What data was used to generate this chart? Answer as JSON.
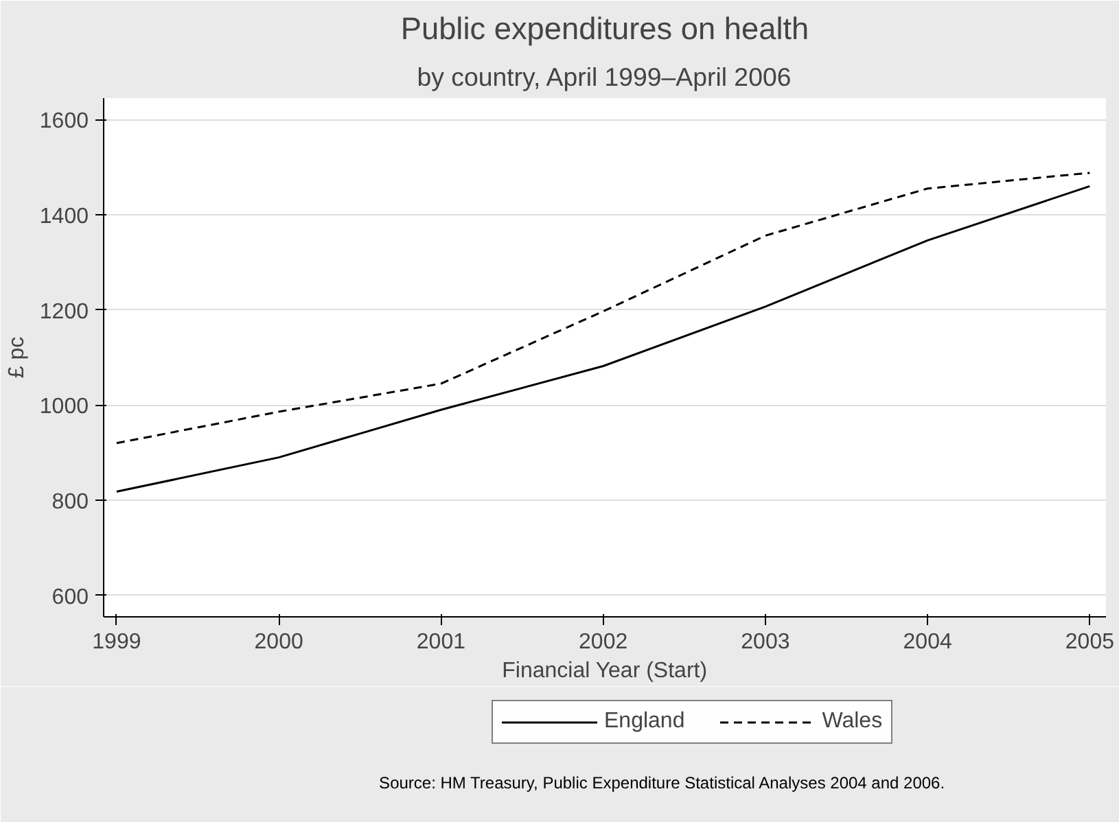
{
  "chart_data": {
    "type": "line",
    "title": "Public expenditures on health",
    "subtitle": "by country, April 1999–April 2006",
    "xlabel": "Financial Year (Start)",
    "ylabel": "£ pc",
    "x": [
      1999,
      2000,
      2001,
      2002,
      2003,
      2004,
      2005
    ],
    "series": [
      {
        "name": "England",
        "color": "#000000",
        "line_style": "solid",
        "values": [
          818,
          890,
          990,
          1082,
          1207,
          1346,
          1460
        ]
      },
      {
        "name": "Wales",
        "color": "#000000",
        "line_style": "dashed",
        "values": [
          920,
          986,
          1045,
          1197,
          1356,
          1455,
          1488
        ]
      }
    ],
    "xlim": [
      1998.92,
      2005.1
    ],
    "ylim": [
      555,
      1645
    ],
    "xticks": [
      1999,
      2000,
      2001,
      2002,
      2003,
      2004,
      2005
    ],
    "yticks": [
      600,
      800,
      1000,
      1200,
      1400,
      1600
    ],
    "grid": "y",
    "legend": "bottom",
    "marker": "none",
    "annotations": [
      "Source: HM Treasury, Public Expenditure Statistical Analyses 2004 and 2006."
    ]
  }
}
